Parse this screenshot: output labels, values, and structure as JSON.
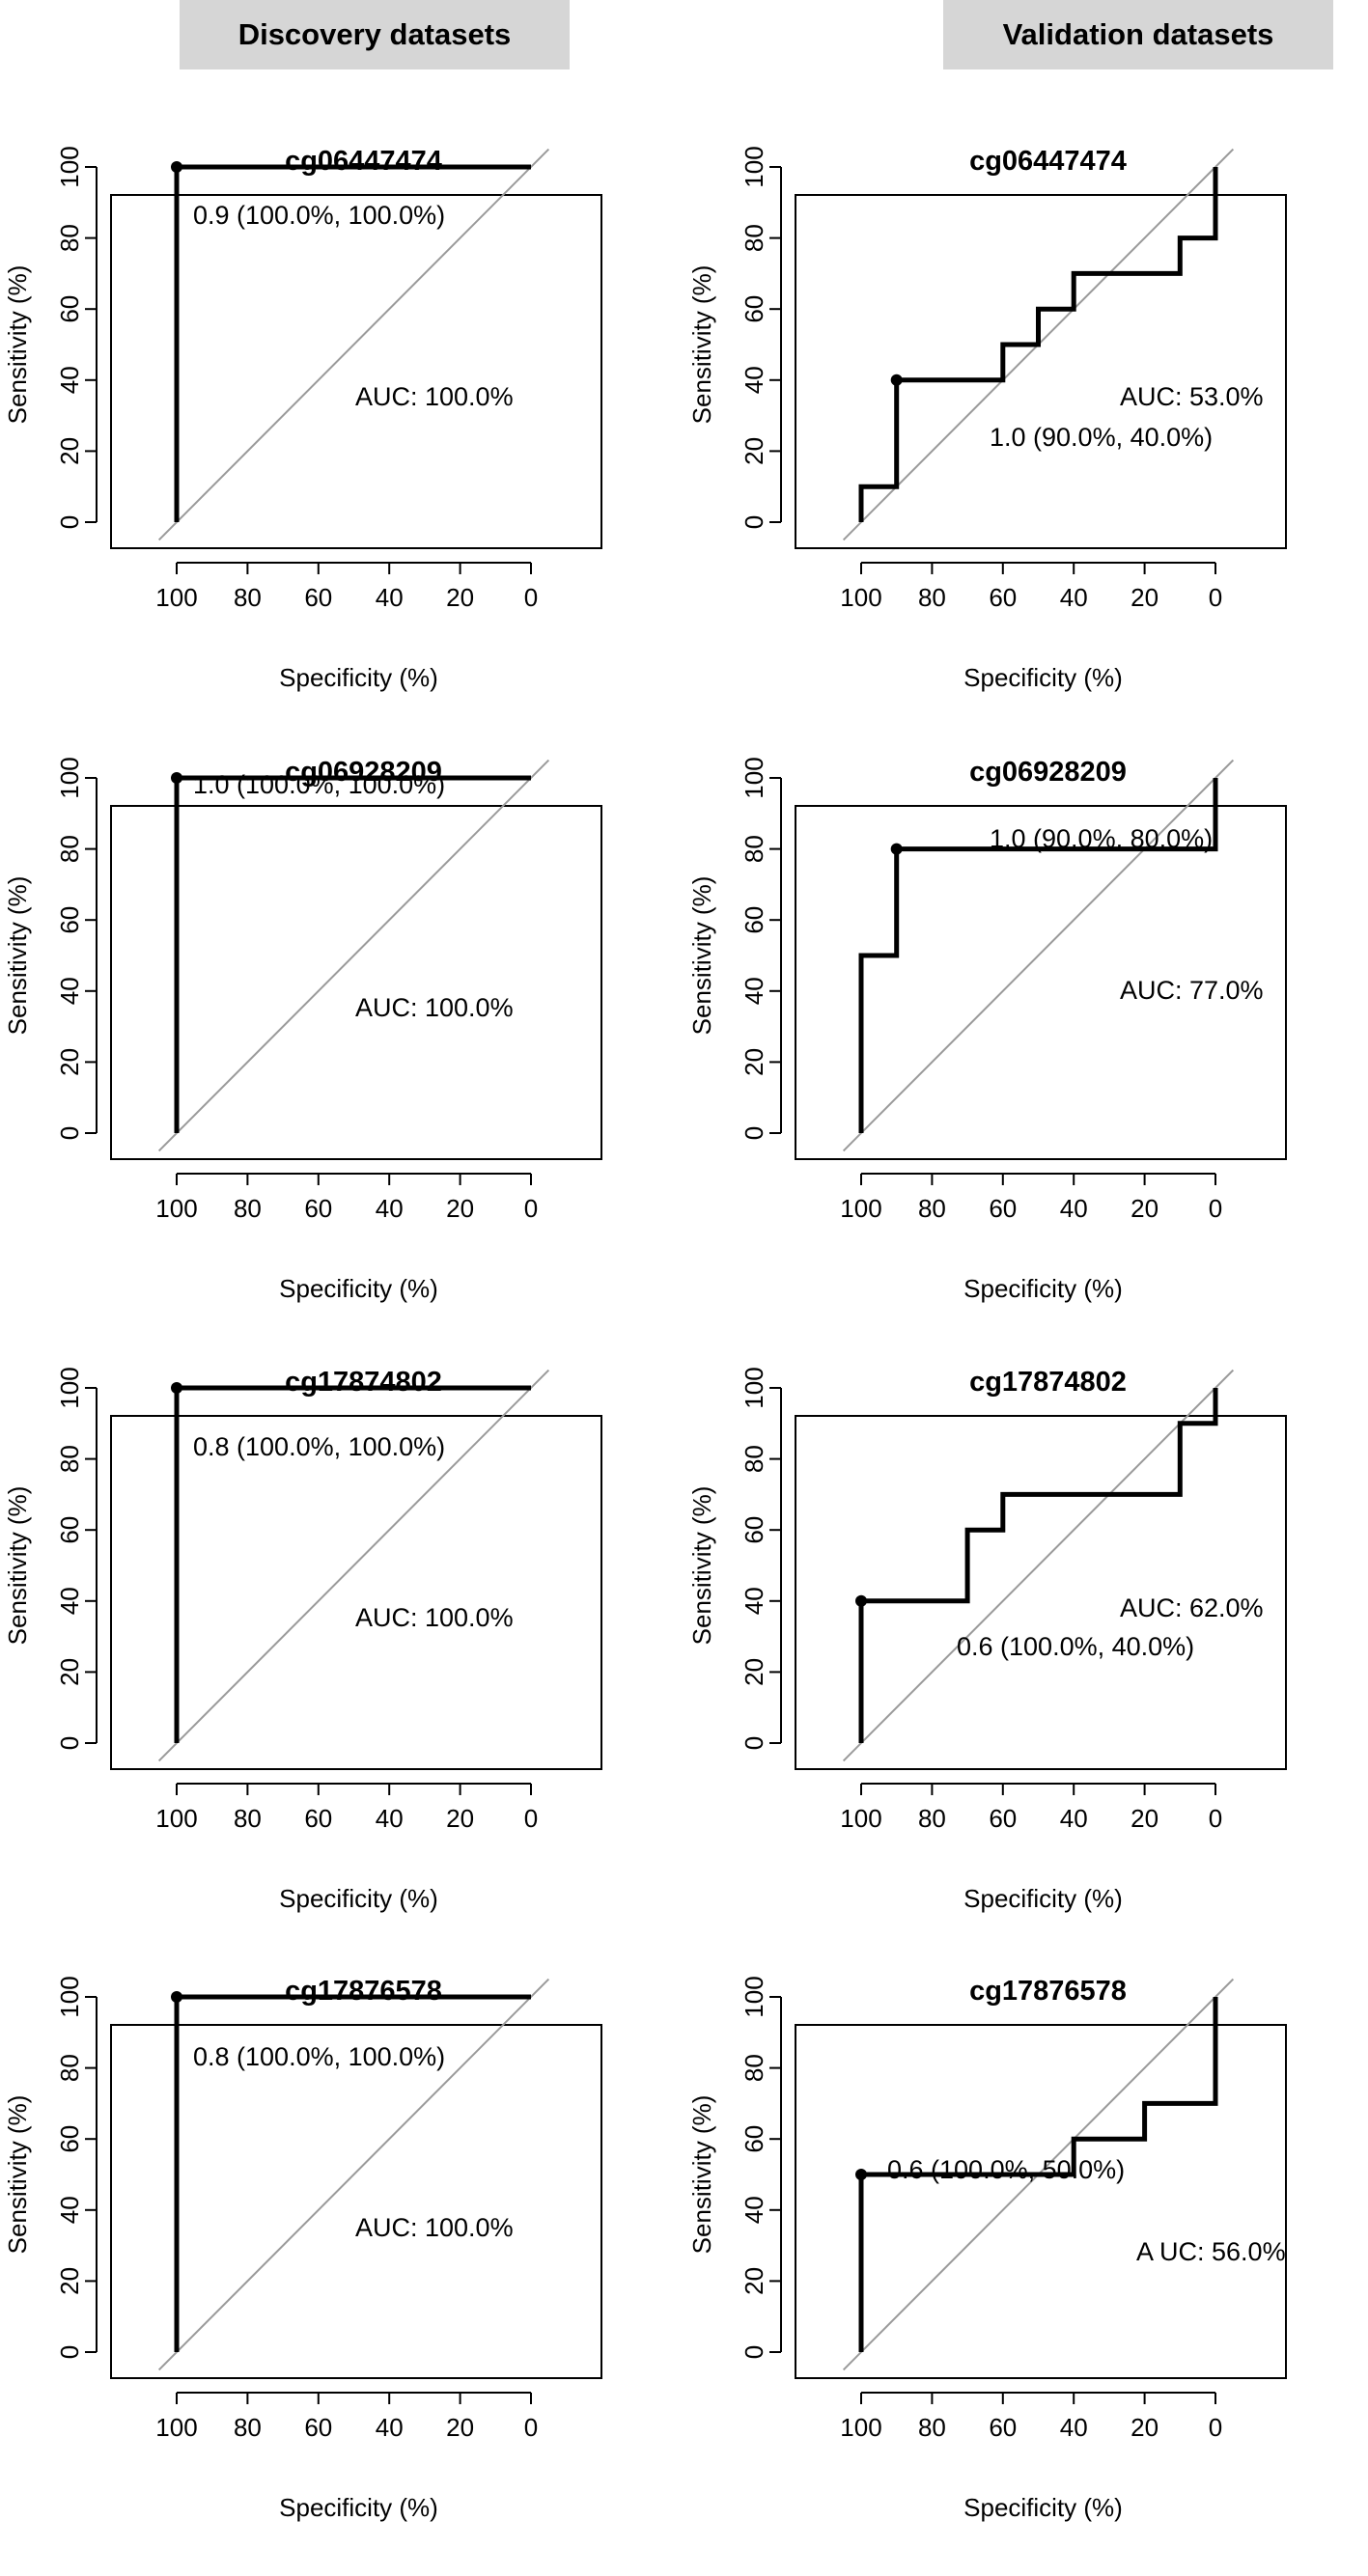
{
  "headers": {
    "left": "Discovery datasets",
    "right": "Validation datasets"
  },
  "chart_data": [
    {
      "type": "line",
      "column": "Discovery datasets",
      "title": "cg06447474",
      "xlabel": "Specificity (%)",
      "ylabel": "Sensitivity (%)",
      "xlim": [
        100,
        0
      ],
      "ylim": [
        0,
        100
      ],
      "xticks": [
        100,
        80,
        60,
        40,
        20,
        0
      ],
      "yticks": [
        0,
        20,
        40,
        60,
        80,
        100
      ],
      "curve": [
        [
          100,
          0
        ],
        [
          100,
          100
        ],
        [
          0,
          100
        ]
      ],
      "threshold_point": [
        100,
        100
      ],
      "threshold_label": "0.9 (100.0%, 100.0%)",
      "auc_label": "AUC: 100.0%",
      "reference_diagonal": true
    },
    {
      "type": "line",
      "column": "Validation datasets",
      "title": "cg06447474",
      "xlabel": "Specificity (%)",
      "ylabel": "Sensitivity (%)",
      "xlim": [
        100,
        0
      ],
      "ylim": [
        0,
        100
      ],
      "xticks": [
        100,
        80,
        60,
        40,
        20,
        0
      ],
      "yticks": [
        0,
        20,
        40,
        60,
        80,
        100
      ],
      "curve": [
        [
          100,
          0
        ],
        [
          100,
          10
        ],
        [
          90,
          10
        ],
        [
          90,
          40
        ],
        [
          60,
          40
        ],
        [
          60,
          50
        ],
        [
          50,
          50
        ],
        [
          50,
          60
        ],
        [
          40,
          60
        ],
        [
          40,
          70
        ],
        [
          10,
          70
        ],
        [
          10,
          80
        ],
        [
          0,
          80
        ],
        [
          0,
          100
        ]
      ],
      "threshold_point": [
        90,
        40
      ],
      "threshold_label": "1.0 (90.0%, 40.0%)",
      "auc_label": "AUC: 53.0%",
      "reference_diagonal": true
    },
    {
      "type": "line",
      "column": "Discovery datasets",
      "title": "cg06928209",
      "xlabel": "Specificity (%)",
      "ylabel": "Sensitivity (%)",
      "xlim": [
        100,
        0
      ],
      "ylim": [
        0,
        100
      ],
      "xticks": [
        100,
        80,
        60,
        40,
        20,
        0
      ],
      "yticks": [
        0,
        20,
        40,
        60,
        80,
        100
      ],
      "curve": [
        [
          100,
          0
        ],
        [
          100,
          100
        ],
        [
          0,
          100
        ]
      ],
      "threshold_point": [
        100,
        100
      ],
      "threshold_label": "1.0 (100.0%, 100.0%)",
      "auc_label": "AUC: 100.0%",
      "reference_diagonal": true
    },
    {
      "type": "line",
      "column": "Validation datasets",
      "title": "cg06928209",
      "xlabel": "Specificity (%)",
      "ylabel": "Sensitivity (%)",
      "xlim": [
        100,
        0
      ],
      "ylim": [
        0,
        100
      ],
      "xticks": [
        100,
        80,
        60,
        40,
        20,
        0
      ],
      "yticks": [
        0,
        20,
        40,
        60,
        80,
        100
      ],
      "curve": [
        [
          100,
          0
        ],
        [
          100,
          50
        ],
        [
          90,
          50
        ],
        [
          90,
          80
        ],
        [
          0,
          80
        ],
        [
          0,
          100
        ]
      ],
      "threshold_point": [
        90,
        80
      ],
      "threshold_label": "1.0 (90.0%, 80.0%)",
      "auc_label": "AUC: 77.0%",
      "reference_diagonal": true
    },
    {
      "type": "line",
      "column": "Discovery datasets",
      "title": "cg17874802",
      "xlabel": "Specificity (%)",
      "ylabel": "Sensitivity (%)",
      "xlim": [
        100,
        0
      ],
      "ylim": [
        0,
        100
      ],
      "xticks": [
        100,
        80,
        60,
        40,
        20,
        0
      ],
      "yticks": [
        0,
        20,
        40,
        60,
        80,
        100
      ],
      "curve": [
        [
          100,
          0
        ],
        [
          100,
          100
        ],
        [
          0,
          100
        ]
      ],
      "threshold_point": [
        100,
        100
      ],
      "threshold_label": "0.8 (100.0%, 100.0%)",
      "auc_label": "AUC: 100.0%",
      "reference_diagonal": true
    },
    {
      "type": "line",
      "column": "Validation datasets",
      "title": "cg17874802",
      "xlabel": "Specificity (%)",
      "ylabel": "Sensitivity (%)",
      "xlim": [
        100,
        0
      ],
      "ylim": [
        0,
        100
      ],
      "xticks": [
        100,
        80,
        60,
        40,
        20,
        0
      ],
      "yticks": [
        0,
        20,
        40,
        60,
        80,
        100
      ],
      "curve": [
        [
          100,
          0
        ],
        [
          100,
          40
        ],
        [
          70,
          40
        ],
        [
          70,
          60
        ],
        [
          60,
          60
        ],
        [
          60,
          70
        ],
        [
          10,
          70
        ],
        [
          10,
          90
        ],
        [
          0,
          90
        ],
        [
          0,
          100
        ]
      ],
      "threshold_point": [
        100,
        40
      ],
      "threshold_label": "0.6 (100.0%, 40.0%)",
      "auc_label": "AUC: 62.0%",
      "reference_diagonal": true
    },
    {
      "type": "line",
      "column": "Discovery datasets",
      "title": "cg17876578",
      "xlabel": "Specificity (%)",
      "ylabel": "Sensitivity (%)",
      "xlim": [
        100,
        0
      ],
      "ylim": [
        0,
        100
      ],
      "xticks": [
        100,
        80,
        60,
        40,
        20,
        0
      ],
      "yticks": [
        0,
        20,
        40,
        60,
        80,
        100
      ],
      "curve": [
        [
          100,
          0
        ],
        [
          100,
          100
        ],
        [
          0,
          100
        ]
      ],
      "threshold_point": [
        100,
        100
      ],
      "threshold_label": "0.8 (100.0%, 100.0%)",
      "auc_label": "AUC: 100.0%",
      "reference_diagonal": true
    },
    {
      "type": "line",
      "column": "Validation datasets",
      "title": "cg17876578",
      "xlabel": "Specificity (%)",
      "ylabel": "Sensitivity (%)",
      "xlim": [
        100,
        0
      ],
      "ylim": [
        0,
        100
      ],
      "xticks": [
        100,
        80,
        60,
        40,
        20,
        0
      ],
      "yticks": [
        0,
        20,
        40,
        60,
        80,
        100
      ],
      "curve": [
        [
          100,
          0
        ],
        [
          100,
          50
        ],
        [
          40,
          50
        ],
        [
          40,
          60
        ],
        [
          20,
          60
        ],
        [
          20,
          70
        ],
        [
          0,
          70
        ],
        [
          0,
          100
        ]
      ],
      "threshold_point": [
        100,
        50
      ],
      "threshold_label": "0.6 (100.0%, 50.0%)",
      "auc_label": "A UC: 56.0%",
      "reference_diagonal": true
    }
  ]
}
